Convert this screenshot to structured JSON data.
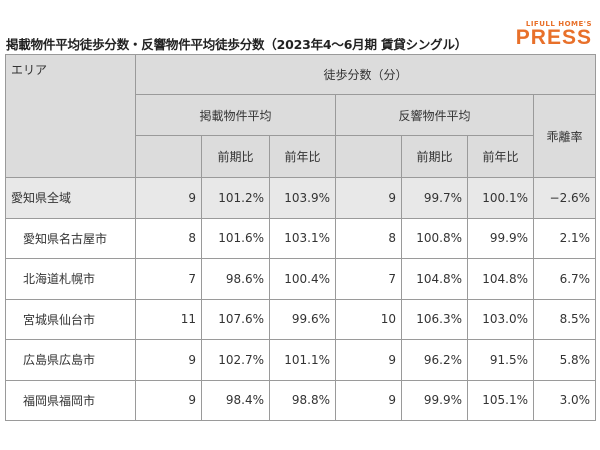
{
  "title": "掲載物件平均徒歩分数・反響物件平均徒歩分数（2023年4〜6月期 賃貸シングル）",
  "logo": {
    "small": "LIFULL HOME'S",
    "big": "PRESS"
  },
  "table": {
    "header": {
      "area": "エリア",
      "group": "徒歩分数（分）",
      "listing": "掲載物件平均",
      "response": "反響物件平均",
      "divergence": "乖離率",
      "qoq": "前期比",
      "yoy": "前年比"
    },
    "rows": [
      {
        "area": "愛知県全域",
        "l": "9",
        "l_qoq": "101.2%",
        "l_yoy": "103.9%",
        "r": "9",
        "r_qoq": "99.7%",
        "r_yoy": "100.1%",
        "div": "−2.6%"
      },
      {
        "area": "愛知県名古屋市",
        "l": "8",
        "l_qoq": "101.6%",
        "l_yoy": "103.1%",
        "r": "8",
        "r_qoq": "100.8%",
        "r_yoy": "99.9%",
        "div": "2.1%"
      },
      {
        "area": "北海道札幌市",
        "l": "7",
        "l_qoq": "98.6%",
        "l_yoy": "100.4%",
        "r": "7",
        "r_qoq": "104.8%",
        "r_yoy": "104.8%",
        "div": "6.7%"
      },
      {
        "area": "宮城県仙台市",
        "l": "11",
        "l_qoq": "107.6%",
        "l_yoy": "99.6%",
        "r": "10",
        "r_qoq": "106.3%",
        "r_yoy": "103.0%",
        "div": "8.5%"
      },
      {
        "area": "広島県広島市",
        "l": "9",
        "l_qoq": "102.7%",
        "l_yoy": "101.1%",
        "r": "9",
        "r_qoq": "96.2%",
        "r_yoy": "91.5%",
        "div": "5.8%"
      },
      {
        "area": "福岡県福岡市",
        "l": "9",
        "l_qoq": "98.4%",
        "l_yoy": "98.8%",
        "r": "9",
        "r_qoq": "99.9%",
        "r_yoy": "105.1%",
        "div": "3.0%"
      }
    ]
  }
}
